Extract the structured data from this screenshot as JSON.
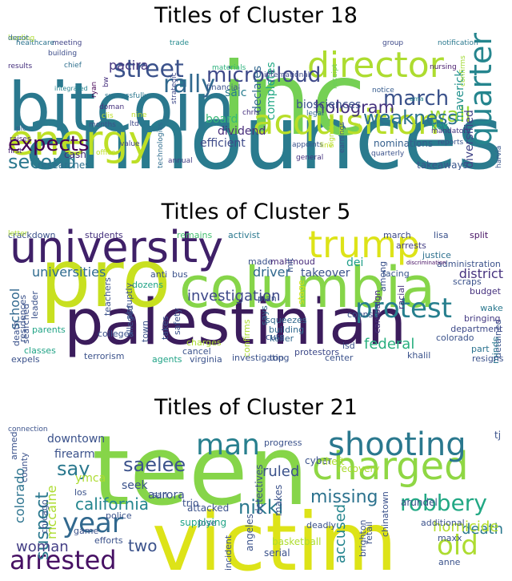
{
  "figure": {
    "panels": [
      {
        "title": "Titles of Cluster 18",
        "words": [
          {
            "text": "announces",
            "color": "#2a7b8e"
          },
          {
            "text": "inc",
            "color": "#75d054"
          },
          {
            "text": "bitcoin",
            "color": "#2a788e"
          },
          {
            "text": "energy",
            "color": "#bddf26"
          },
          {
            "text": "director",
            "color": "#addc30"
          },
          {
            "text": "acquisition",
            "color": "#b8de29"
          },
          {
            "text": "quarter",
            "color": "#25858e"
          },
          {
            "text": "street",
            "color": "#3b528b"
          },
          {
            "text": "rally",
            "color": "#31688e"
          },
          {
            "text": "microcloud",
            "color": "#3e4989"
          },
          {
            "text": "march",
            "color": "#3b528b"
          },
          {
            "text": "wall",
            "color": "#a0da39"
          },
          {
            "text": "weakness",
            "color": "#2c728e"
          },
          {
            "text": "hologram",
            "color": "#46337e"
          },
          {
            "text": "expects",
            "color": "#440154"
          },
          {
            "text": "second",
            "color": "#2a788e"
          },
          {
            "text": "dividend",
            "color": "#472d7b"
          },
          {
            "text": "efficient",
            "color": "#3e4a89"
          },
          {
            "text": "board",
            "color": "#37b878"
          },
          {
            "text": "declares",
            "color": "#31688e"
          },
          {
            "text": "completes",
            "color": "#22a884"
          },
          {
            "text": "biosciences",
            "color": "#3b528b"
          },
          {
            "text": "pacira",
            "color": "#453781"
          },
          {
            "text": "saic",
            "color": "#287c8e"
          },
          {
            "text": "maverick",
            "color": "#21918c"
          },
          {
            "text": "diversified",
            "color": "#414487"
          },
          {
            "text": "key",
            "color": "#1fa187"
          },
          {
            "text": "nominations",
            "color": "#355f8d"
          },
          {
            "text": "cash",
            "color": "#472c7a"
          },
          {
            "text": "researches",
            "color": "#2d708e"
          },
          {
            "text": "takeaways",
            "color": "#39568c"
          },
          {
            "text": "reports",
            "color": "#3b528b"
          },
          {
            "text": "meeting",
            "color": "#414487"
          },
          {
            "text": "healthcare",
            "color": "#2c738e"
          },
          {
            "text": "trade",
            "color": "#238a8d"
          },
          {
            "text": "group",
            "color": "#3e4a89"
          },
          {
            "text": "notification",
            "color": "#2a788e"
          },
          {
            "text": "results",
            "color": "#46307e"
          },
          {
            "text": "building",
            "color": "#3d4d8a"
          },
          {
            "text": "chief",
            "color": "#2e6f8e"
          },
          {
            "text": "bw",
            "color": "#46307e"
          },
          {
            "text": "materials",
            "color": "#2db27d"
          },
          {
            "text": "international",
            "color": "#3e4989"
          },
          {
            "text": "nursing",
            "color": "#481b6d"
          },
          {
            "text": "notice",
            "color": "#365c8d"
          },
          {
            "text": "ama",
            "color": "#25838e"
          },
          {
            "text": "confirms",
            "color": "#a2da37"
          },
          {
            "text": "harvia",
            "color": "#39568c"
          },
          {
            "text": "receipt",
            "color": "#6ccd5a"
          },
          {
            "text": "financial",
            "color": "#3b528b"
          },
          {
            "text": "strategic",
            "color": "#3e4989"
          },
          {
            "text": "ryan",
            "color": "#440154"
          },
          {
            "text": "integrated",
            "color": "#26828e"
          },
          {
            "text": "successfully",
            "color": "#2a768e"
          },
          {
            "text": "doman",
            "color": "#46327e"
          },
          {
            "text": "clis",
            "color": "#bddf26"
          },
          {
            "text": "chris",
            "color": "#46307e"
          },
          {
            "text": "legal",
            "color": "#31688e"
          },
          {
            "text": "months",
            "color": "#3b528b"
          },
          {
            "text": "nine",
            "color": "#bddf26"
          },
          {
            "text": "ltd",
            "color": "#3f4788"
          },
          {
            "text": "value",
            "color": "#414487"
          },
          {
            "text": "plc",
            "color": "#355f8d"
          },
          {
            "text": "raises",
            "color": "#482475"
          },
          {
            "text": "first",
            "color": "#481f70"
          },
          {
            "text": "officer",
            "color": "#bddf26"
          },
          {
            "text": "technologies",
            "color": "#2f6c8e"
          },
          {
            "text": "annual",
            "color": "#433e85"
          },
          {
            "text": "appoints",
            "color": "#3b528b"
          },
          {
            "text": "line",
            "color": "#c2df23"
          },
          {
            "text": "general",
            "color": "#46337e"
          },
          {
            "text": "signatron",
            "color": "#b5de2b"
          },
          {
            "text": "earnings",
            "color": "#3b528b"
          },
          {
            "text": "quarterly",
            "color": "#3b528b"
          },
          {
            "text": "mandatory",
            "color": "#453781"
          },
          {
            "text": "leading",
            "color": "#addc30"
          },
          {
            "text": "depot",
            "color": "#31688e"
          }
        ]
      },
      {
        "title": "Titles of Cluster 5",
        "words": [
          {
            "text": "palestinian",
            "color": "#3b1c5c"
          },
          {
            "text": "pro",
            "color": "#c8e020"
          },
          {
            "text": "columbia",
            "color": "#86d549"
          },
          {
            "text": "university",
            "color": "#3f2068"
          },
          {
            "text": "trump",
            "color": "#dde318"
          },
          {
            "text": "protest",
            "color": "#277f8e"
          },
          {
            "text": "investigation",
            "color": "#3e4989"
          },
          {
            "text": "universities",
            "color": "#2f6b8e"
          },
          {
            "text": "school",
            "color": "#31688e"
          },
          {
            "text": "federal",
            "color": "#29af7f"
          },
          {
            "text": "district",
            "color": "#46327e"
          },
          {
            "text": "driver",
            "color": "#31688e"
          },
          {
            "text": "dei",
            "color": "#1f9e89"
          },
          {
            "text": "takeover",
            "color": "#3b528b"
          },
          {
            "text": "crackdown",
            "color": "#3b528b"
          },
          {
            "text": "students",
            "color": "#46327e"
          },
          {
            "text": "remains",
            "color": "#44bf70"
          },
          {
            "text": "activist",
            "color": "#2a788e"
          },
          {
            "text": "march",
            "color": "#3e4a89"
          },
          {
            "text": "lisa",
            "color": "#3b528b"
          },
          {
            "text": "split",
            "color": "#471365"
          },
          {
            "text": "arrests",
            "color": "#433e85"
          },
          {
            "text": "justice",
            "color": "#2d708e"
          },
          {
            "text": "administration",
            "color": "#3b528b"
          },
          {
            "text": "facing",
            "color": "#39568c"
          },
          {
            "text": "discrimination",
            "color": "#471063"
          },
          {
            "text": "scraps",
            "color": "#3b528b"
          },
          {
            "text": "budget",
            "color": "#46327e"
          },
          {
            "text": "wake",
            "color": "#2a788e"
          },
          {
            "text": "detained",
            "color": "#3b528b"
          },
          {
            "text": "bringing",
            "color": "#443a83"
          },
          {
            "text": "department",
            "color": "#3e4a89"
          },
          {
            "text": "colorado",
            "color": "#3b528b"
          },
          {
            "text": "part",
            "color": "#2c738e"
          },
          {
            "text": "minds",
            "color": "#2a788e"
          },
          {
            "text": "resigns",
            "color": "#3b528b"
          },
          {
            "text": "khalil",
            "color": "#3b528b"
          },
          {
            "text": "center",
            "color": "#3b528b"
          },
          {
            "text": "protestors",
            "color": "#3e4a89"
          },
          {
            "text": "isd",
            "color": "#3b528b"
          },
          {
            "text": "campaign",
            "color": "#46307e"
          },
          {
            "text": "coons",
            "color": "#3b528b"
          },
          {
            "text": "racial",
            "color": "#46327e"
          },
          {
            "text": "among",
            "color": "#3b528b"
          },
          {
            "text": "made",
            "color": "#3b528b"
          },
          {
            "text": "mahmoud",
            "color": "#472a7a"
          },
          {
            "text": "mit",
            "color": "#3b528b"
          },
          {
            "text": "stage",
            "color": "#d2e21b"
          },
          {
            "text": "plan",
            "color": "#3b528b"
          },
          {
            "text": "squeezes",
            "color": "#31688e"
          },
          {
            "text": "keller",
            "color": "#31688e"
          },
          {
            "text": "building",
            "color": "#31688e"
          },
          {
            "text": "says",
            "color": "#31688e"
          },
          {
            "text": "cuts",
            "color": "#3b528b"
          },
          {
            "text": "top",
            "color": "#3b528b"
          },
          {
            "text": "confirms",
            "color": "#addc30"
          },
          {
            "text": "investigating",
            "color": "#3b528b"
          },
          {
            "text": "agents",
            "color": "#20a386"
          },
          {
            "text": "virginia",
            "color": "#3b528b"
          },
          {
            "text": "terrorism",
            "color": "#3b528b"
          },
          {
            "text": "expels",
            "color": "#3b528b"
          },
          {
            "text": "classes",
            "color": "#20a386"
          },
          {
            "text": "death",
            "color": "#3b528b"
          },
          {
            "text": "searched",
            "color": "#3b528b"
          },
          {
            "text": "residences",
            "color": "#3b528b"
          },
          {
            "text": "leader",
            "color": "#3b528b"
          },
          {
            "text": "parents",
            "color": "#20a386"
          },
          {
            "text": "colleges",
            "color": "#3b528b"
          },
          {
            "text": "teachers",
            "color": "#3b528b"
          },
          {
            "text": "dozens",
            "color": "#20a386"
          },
          {
            "text": "anti",
            "color": "#3b528b"
          },
          {
            "text": "bus",
            "color": "#3b528b"
          },
          {
            "text": "abruptly",
            "color": "#3b528b"
          },
          {
            "text": "alleged",
            "color": "#3b528b"
          },
          {
            "text": "town",
            "color": "#3b528b"
          },
          {
            "text": "takes",
            "color": "#3b528b"
          },
          {
            "text": "safety",
            "color": "#3b528b"
          },
          {
            "text": "charges",
            "color": "#addc30"
          },
          {
            "text": "cancel",
            "color": "#3b528b"
          },
          {
            "text": "letter",
            "color": "#addc30"
          }
        ]
      },
      {
        "title": "Titles of Cluster 21",
        "words": [
          {
            "text": "teen",
            "color": "#86d549"
          },
          {
            "text": "victim",
            "color": "#dde318"
          },
          {
            "text": "charged",
            "color": "#8fd744"
          },
          {
            "text": "shooting",
            "color": "#2a788e"
          },
          {
            "text": "man",
            "color": "#277f8e"
          },
          {
            "text": "arrested",
            "color": "#471164"
          },
          {
            "text": "year",
            "color": "#31688e"
          },
          {
            "text": "suspect",
            "color": "#2a788e"
          },
          {
            "text": "robbery",
            "color": "#22a884"
          },
          {
            "text": "old",
            "color": "#addc30"
          },
          {
            "text": "say",
            "color": "#2a788e"
          },
          {
            "text": "saelee",
            "color": "#3b528b"
          },
          {
            "text": "california",
            "color": "#24868e"
          },
          {
            "text": "woman",
            "color": "#433e85"
          },
          {
            "text": "two",
            "color": "#3b528b"
          },
          {
            "text": "nikki",
            "color": "#2a788e"
          },
          {
            "text": "ruled",
            "color": "#3b528b"
          },
          {
            "text": "missing",
            "color": "#2c728e"
          },
          {
            "text": "accused",
            "color": "#25858e"
          },
          {
            "text": "death",
            "color": "#2a788e"
          },
          {
            "text": "homicide",
            "color": "#b5de2b"
          },
          {
            "text": "colorado",
            "color": "#2c738e"
          },
          {
            "text": "mccaine",
            "color": "#addc30"
          },
          {
            "text": "downtown",
            "color": "#3b528b"
          },
          {
            "text": "firearm",
            "color": "#3b528b"
          },
          {
            "text": "ymca",
            "color": "#addc30"
          },
          {
            "text": "aurora",
            "color": "#3b528b"
          },
          {
            "text": "seek",
            "color": "#3b528b"
          },
          {
            "text": "trio",
            "color": "#3b528b"
          },
          {
            "text": "police",
            "color": "#3b528b"
          },
          {
            "text": "detectives",
            "color": "#3b528b"
          },
          {
            "text": "makes",
            "color": "#3b528b"
          },
          {
            "text": "cyber",
            "color": "#3b528b"
          },
          {
            "text": "theft",
            "color": "#addc30"
          },
          {
            "text": "progress",
            "color": "#3b528b"
          },
          {
            "text": "recovery",
            "color": "#addc30"
          },
          {
            "text": "arundel",
            "color": "#3b528b"
          },
          {
            "text": "tj",
            "color": "#3b528b"
          },
          {
            "text": "armed",
            "color": "#3b528b"
          },
          {
            "text": "county",
            "color": "#3b528b"
          },
          {
            "text": "los",
            "color": "#3b528b"
          },
          {
            "text": "san",
            "color": "#3b528b"
          },
          {
            "text": "chicago",
            "color": "#3b528b"
          },
          {
            "text": "game",
            "color": "#3b528b"
          },
          {
            "text": "efforts",
            "color": "#3b528b"
          },
          {
            "text": "jose",
            "color": "#3b528b"
          },
          {
            "text": "attacked",
            "color": "#3b528b"
          },
          {
            "text": "supplying",
            "color": "#20a386"
          },
          {
            "text": "angeles",
            "color": "#3b528b"
          },
          {
            "text": "incident",
            "color": "#3b528b"
          },
          {
            "text": "basketball",
            "color": "#addc30"
          },
          {
            "text": "serial",
            "color": "#3b528b"
          },
          {
            "text": "deadly",
            "color": "#3b528b"
          },
          {
            "text": "retail",
            "color": "#3b528b"
          },
          {
            "text": "brighton",
            "color": "#3b528b"
          },
          {
            "text": "chinatown",
            "color": "#3b528b"
          },
          {
            "text": "additional",
            "color": "#3b528b"
          },
          {
            "text": "maxx",
            "color": "#3b528b"
          },
          {
            "text": "anne",
            "color": "#3b528b"
          },
          {
            "text": "connection",
            "color": "#3b528b"
          }
        ]
      }
    ]
  }
}
